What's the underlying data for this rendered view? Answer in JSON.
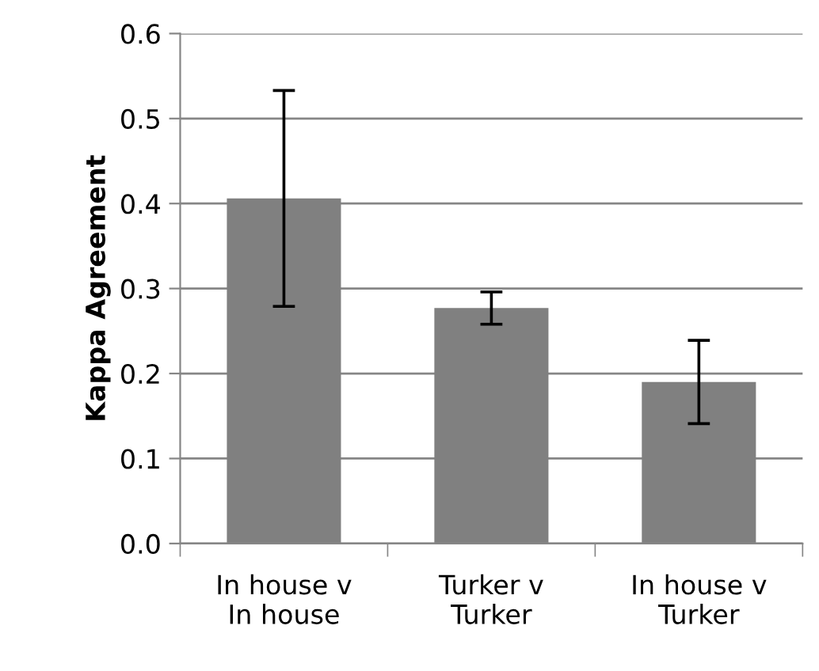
{
  "chart_data": {
    "type": "bar",
    "ylabel": "Kappa Agreement",
    "categories": [
      "In house v\nIn house",
      "Turker v\nTurker",
      "In house v\nTurker"
    ],
    "values": [
      0.406,
      0.277,
      0.19
    ],
    "errors": [
      0.127,
      0.019,
      0.049
    ],
    "color": "#808080",
    "ylim": [
      0,
      0.6
    ],
    "yticks": [
      {
        "value": 0,
        "label": "0.0"
      },
      0.1,
      0.2,
      0.3,
      0.4,
      0.5,
      0.6
    ],
    "grid": "y"
  }
}
